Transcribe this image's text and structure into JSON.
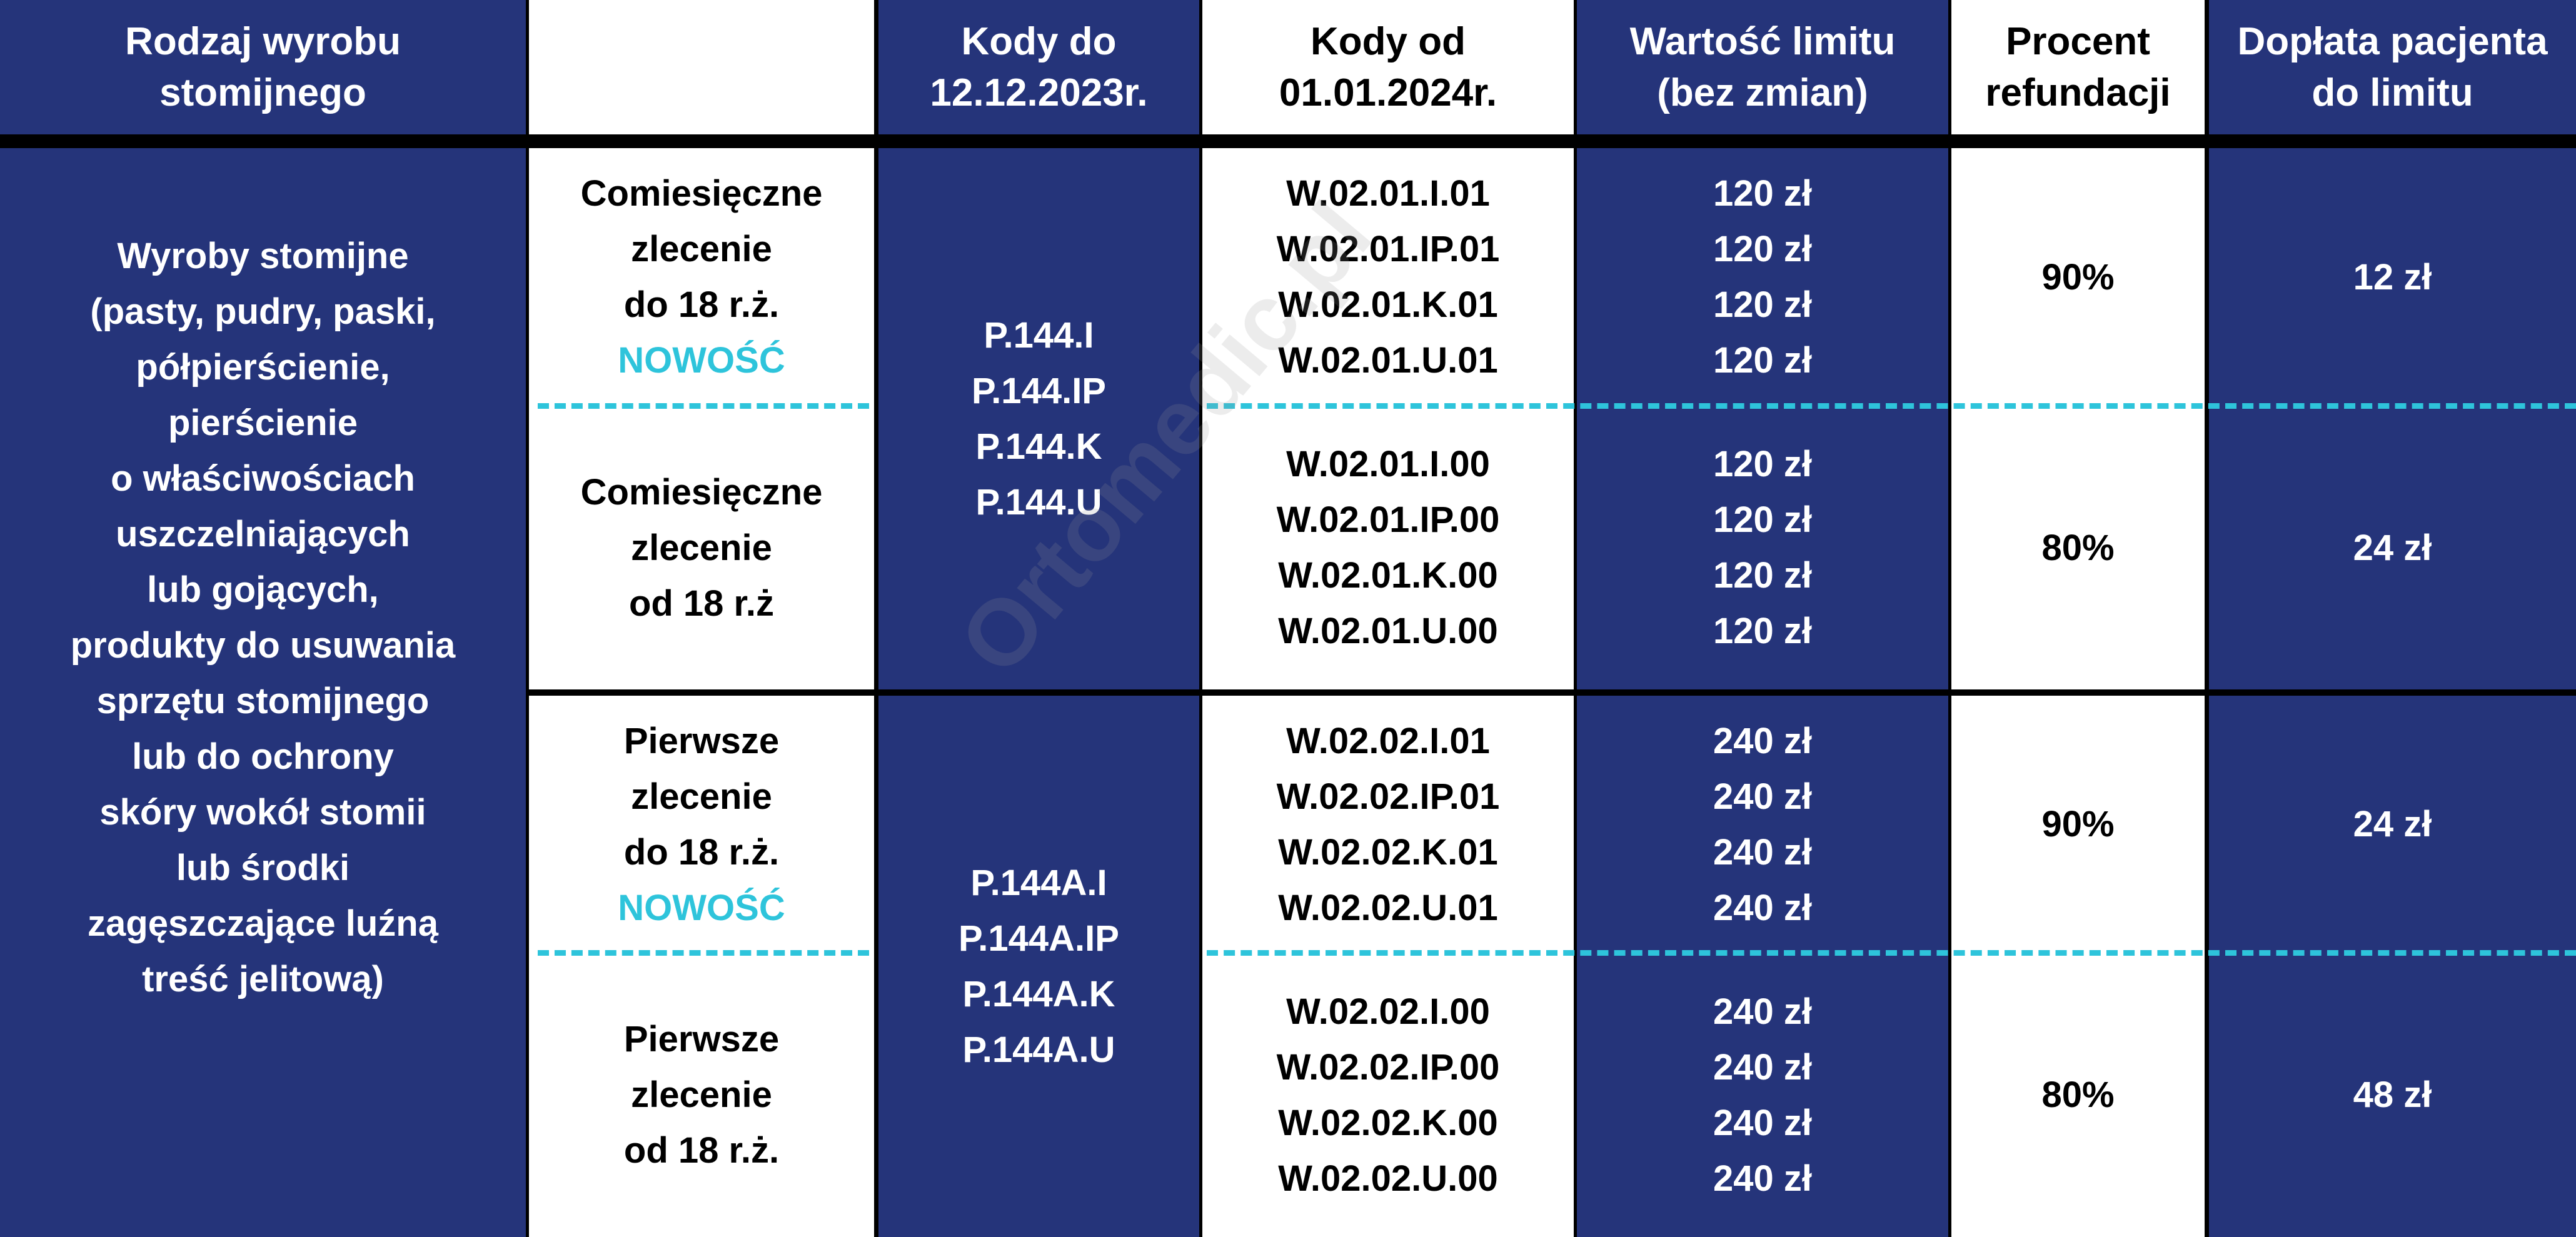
{
  "colors": {
    "navy": "#25347a",
    "accent": "#2ec4db",
    "border": "#000000"
  },
  "watermark": "Ortomedic.pl",
  "headers": [
    [
      "Rodzaj wyrobu",
      "stomijnego"
    ],
    [],
    [
      "Kody do",
      "12.12.2023r."
    ],
    [
      "Kody od",
      "01.01.2024r."
    ],
    [
      "Wartość limitu",
      "(bez zmian)"
    ],
    [
      "Procent",
      "refundacji"
    ],
    [
      "Dopłata pacjenta",
      "do limitu"
    ]
  ],
  "product_type": [
    "Wyroby stomijne",
    "(pasty, pudry, paski,",
    "półpierścienie,",
    "pierścienie",
    "o właściwościach",
    "uszczelniających",
    "lub gojących,",
    "produkty do usuwania",
    "sprzętu stomijnego",
    "lub do ochrony",
    "skóry wokół stomii",
    "lub środki",
    "zagęszczające luźną",
    "treść jelitową)"
  ],
  "old_codes": [
    [
      "P.144.I",
      "P.144.IP",
      "P.144.K",
      "P.144.U"
    ],
    [
      "P.144A.I",
      "P.144A.IP",
      "P.144A.K",
      "P.144A.U"
    ]
  ],
  "rows": [
    {
      "order": [
        "Comiesięczne",
        "zlecenie",
        "do 18 r.ż."
      ],
      "badge": "NOWOŚĆ",
      "codes": [
        "W.02.01.I.01",
        "W.02.01.IP.01",
        "W.02.01.K.01",
        "W.02.01.U.01"
      ],
      "limits": [
        "120 zł",
        "120 zł",
        "120 zł",
        "120 zł"
      ],
      "percent": "90%",
      "copay": "12 zł"
    },
    {
      "order": [
        "Comiesięczne",
        "zlecenie",
        "od 18 r.ż"
      ],
      "badge": "",
      "codes": [
        "W.02.01.I.00",
        "W.02.01.IP.00",
        "W.02.01.K.00",
        "W.02.01.U.00"
      ],
      "limits": [
        "120 zł",
        "120 zł",
        "120 zł",
        "120 zł"
      ],
      "percent": "80%",
      "copay": "24 zł"
    },
    {
      "order": [
        "Pierwsze",
        "zlecenie",
        "do 18 r.ż."
      ],
      "badge": "NOWOŚĆ",
      "codes": [
        "W.02.02.I.01",
        "W.02.02.IP.01",
        "W.02.02.K.01",
        "W.02.02.U.01"
      ],
      "limits": [
        "240 zł",
        "240 zł",
        "240 zł",
        "240 zł"
      ],
      "percent": "90%",
      "copay": "24 zł"
    },
    {
      "order": [
        "Pierwsze",
        "zlecenie",
        "od 18 r.ż."
      ],
      "badge": "",
      "codes": [
        "W.02.02.I.00",
        "W.02.02.IP.00",
        "W.02.02.K.00",
        "W.02.02.U.00"
      ],
      "limits": [
        "240 zł",
        "240 zł",
        "240 zł",
        "240 zł"
      ],
      "percent": "80%",
      "copay": "48 zł"
    }
  ]
}
